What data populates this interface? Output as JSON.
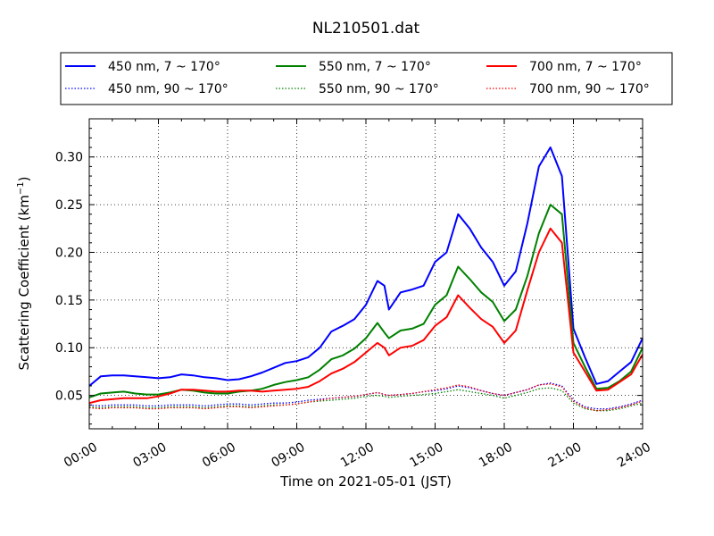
{
  "chart_data": {
    "type": "line",
    "title": "NL210501.dat",
    "xlabel": "Time on 2021-05-01 (JST)",
    "ylabel": "Scattering Coefficient (km",
    "ylabel_unit_exponent": "−1",
    "ylabel_close": ")",
    "xlim": [
      0,
      24
    ],
    "ylim": [
      0.015,
      0.34
    ],
    "x_ticks": [
      0,
      3,
      6,
      9,
      12,
      15,
      18,
      21,
      24
    ],
    "x_tick_labels": [
      "00:00",
      "03:00",
      "06:00",
      "09:00",
      "12:00",
      "15:00",
      "18:00",
      "21:00",
      "24:00"
    ],
    "y_ticks": [
      0.05,
      0.1,
      0.15,
      0.2,
      0.25,
      0.3
    ],
    "y_tick_labels": [
      "0.05",
      "0.10",
      "0.15",
      "0.20",
      "0.25",
      "0.30"
    ],
    "grid": true,
    "grid_style": "dotted",
    "legend_position": "top",
    "legend_columns": 3,
    "x": [
      0,
      0.5,
      1,
      1.5,
      2,
      2.5,
      3,
      3.5,
      4,
      4.5,
      5,
      5.5,
      6,
      6.5,
      7,
      7.5,
      8,
      8.5,
      9,
      9.5,
      10,
      10.5,
      11,
      11.5,
      12,
      12.5,
      12.8,
      13,
      13.5,
      14,
      14.5,
      15,
      15.5,
      16,
      16.5,
      17,
      17.5,
      18,
      18.5,
      19,
      19.5,
      20,
      20.5,
      21,
      21.5,
      22,
      22.5,
      23,
      23.5,
      24
    ],
    "series": [
      {
        "name": "450 nm, 7 ~ 170°",
        "color": "#0000ff",
        "style": "solid",
        "values": [
          0.06,
          0.07,
          0.071,
          0.071,
          0.07,
          0.069,
          0.068,
          0.069,
          0.072,
          0.071,
          0.069,
          0.068,
          0.066,
          0.067,
          0.07,
          0.074,
          0.079,
          0.084,
          0.086,
          0.09,
          0.1,
          0.117,
          0.123,
          0.13,
          0.145,
          0.17,
          0.165,
          0.14,
          0.158,
          0.161,
          0.165,
          0.19,
          0.2,
          0.24,
          0.225,
          0.205,
          0.19,
          0.165,
          0.18,
          0.23,
          0.29,
          0.31,
          0.28,
          0.12,
          0.09,
          0.062,
          0.065,
          0.075,
          0.085,
          0.11
        ]
      },
      {
        "name": "450 nm, 90 ~ 170°",
        "color": "#0000ff",
        "style": "dotted",
        "values": [
          0.04,
          0.039,
          0.04,
          0.04,
          0.04,
          0.039,
          0.039,
          0.04,
          0.04,
          0.04,
          0.039,
          0.04,
          0.041,
          0.041,
          0.04,
          0.041,
          0.042,
          0.042,
          0.043,
          0.045,
          0.046,
          0.047,
          0.048,
          0.049,
          0.051,
          0.053,
          0.051,
          0.05,
          0.051,
          0.052,
          0.054,
          0.055,
          0.057,
          0.06,
          0.058,
          0.055,
          0.052,
          0.05,
          0.053,
          0.056,
          0.061,
          0.063,
          0.06,
          0.045,
          0.038,
          0.036,
          0.036,
          0.038,
          0.041,
          0.045
        ]
      },
      {
        "name": "550 nm, 7 ~ 170°",
        "color": "#008000",
        "style": "solid",
        "values": [
          0.048,
          0.052,
          0.053,
          0.054,
          0.052,
          0.051,
          0.051,
          0.053,
          0.056,
          0.055,
          0.053,
          0.052,
          0.052,
          0.054,
          0.055,
          0.057,
          0.061,
          0.064,
          0.066,
          0.069,
          0.077,
          0.088,
          0.092,
          0.099,
          0.11,
          0.126,
          0.116,
          0.11,
          0.118,
          0.12,
          0.125,
          0.145,
          0.155,
          0.185,
          0.172,
          0.158,
          0.148,
          0.128,
          0.14,
          0.175,
          0.22,
          0.25,
          0.24,
          0.105,
          0.08,
          0.057,
          0.058,
          0.065,
          0.075,
          0.1
        ]
      },
      {
        "name": "550 nm, 90 ~ 170°",
        "color": "#008000",
        "style": "dotted",
        "values": [
          0.038,
          0.037,
          0.038,
          0.038,
          0.038,
          0.037,
          0.037,
          0.038,
          0.038,
          0.038,
          0.037,
          0.038,
          0.039,
          0.039,
          0.038,
          0.039,
          0.04,
          0.04,
          0.041,
          0.043,
          0.044,
          0.045,
          0.046,
          0.047,
          0.049,
          0.05,
          0.049,
          0.048,
          0.049,
          0.05,
          0.051,
          0.052,
          0.054,
          0.056,
          0.054,
          0.052,
          0.05,
          0.047,
          0.05,
          0.053,
          0.057,
          0.058,
          0.055,
          0.042,
          0.036,
          0.034,
          0.034,
          0.036,
          0.039,
          0.042
        ]
      },
      {
        "name": "700 nm, 7 ~ 170°",
        "color": "#ff0000",
        "style": "solid",
        "values": [
          0.042,
          0.045,
          0.046,
          0.047,
          0.047,
          0.047,
          0.049,
          0.052,
          0.056,
          0.056,
          0.055,
          0.054,
          0.054,
          0.055,
          0.055,
          0.054,
          0.055,
          0.056,
          0.057,
          0.059,
          0.065,
          0.073,
          0.078,
          0.085,
          0.095,
          0.105,
          0.1,
          0.092,
          0.1,
          0.102,
          0.108,
          0.123,
          0.132,
          0.155,
          0.142,
          0.13,
          0.122,
          0.105,
          0.118,
          0.16,
          0.2,
          0.225,
          0.21,
          0.095,
          0.075,
          0.055,
          0.056,
          0.064,
          0.072,
          0.093
        ]
      },
      {
        "name": "700 nm, 90 ~ 170°",
        "color": "#ff0000",
        "style": "dotted",
        "values": [
          0.037,
          0.036,
          0.037,
          0.037,
          0.037,
          0.036,
          0.036,
          0.037,
          0.037,
          0.037,
          0.036,
          0.037,
          0.038,
          0.038,
          0.037,
          0.038,
          0.039,
          0.04,
          0.041,
          0.043,
          0.045,
          0.047,
          0.048,
          0.049,
          0.051,
          0.053,
          0.051,
          0.05,
          0.051,
          0.052,
          0.054,
          0.056,
          0.058,
          0.061,
          0.059,
          0.055,
          0.052,
          0.05,
          0.053,
          0.056,
          0.061,
          0.062,
          0.059,
          0.044,
          0.037,
          0.034,
          0.035,
          0.037,
          0.04,
          0.044
        ]
      }
    ]
  }
}
